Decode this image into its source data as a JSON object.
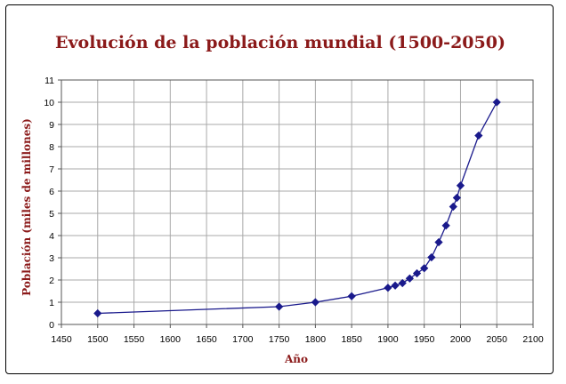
{
  "chart_data": {
    "type": "scatter",
    "title": "Evolución de la población mundial (1500-2050)",
    "xlabel": "Año",
    "ylabel": "Población (miles de millones)",
    "xlim": [
      1450,
      2100
    ],
    "ylim": [
      0,
      11
    ],
    "x_ticks": [
      1450,
      1500,
      1550,
      1600,
      1650,
      1700,
      1750,
      1800,
      1850,
      1900,
      1950,
      2000,
      2050,
      2100
    ],
    "y_ticks": [
      0,
      1,
      2,
      3,
      4,
      5,
      6,
      7,
      8,
      9,
      10,
      11
    ],
    "grid": true,
    "legend": "none",
    "series": [
      {
        "color": "#1a1a8c",
        "marker": "diamond",
        "x": [
          1500,
          1750,
          1800,
          1850,
          1900,
          1910,
          1920,
          1930,
          1940,
          1950,
          1960,
          1970,
          1980,
          1990,
          1995,
          2000,
          2025,
          2050
        ],
        "y": [
          0.5,
          0.8,
          1.0,
          1.27,
          1.65,
          1.75,
          1.86,
          2.07,
          2.3,
          2.53,
          3.02,
          3.7,
          4.45,
          5.3,
          5.7,
          6.25,
          8.5,
          10.0
        ]
      }
    ]
  }
}
